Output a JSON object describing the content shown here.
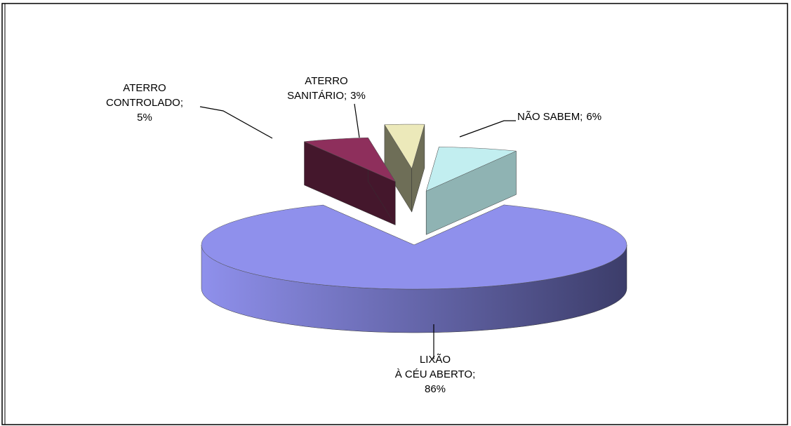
{
  "chart_data": {
    "type": "pie3d",
    "categories": [
      "NÃO SABEM;",
      "LIXÃO À CÉU ABERTO;",
      "ATERRO CONTROLADO;",
      "ATERRO SANITÁRIO;"
    ],
    "values": [
      6,
      86,
      5,
      3
    ],
    "value_labels": [
      "6%",
      "86%",
      "5%",
      "3%"
    ],
    "colors": [
      "#c2eef0",
      "#8f90ec",
      "#8e2f5c",
      "#ece9ba"
    ],
    "side_colors": [
      "#8fb3b3",
      "#3c3d6a",
      "#44172c",
      "#6e6e57"
    ]
  }
}
